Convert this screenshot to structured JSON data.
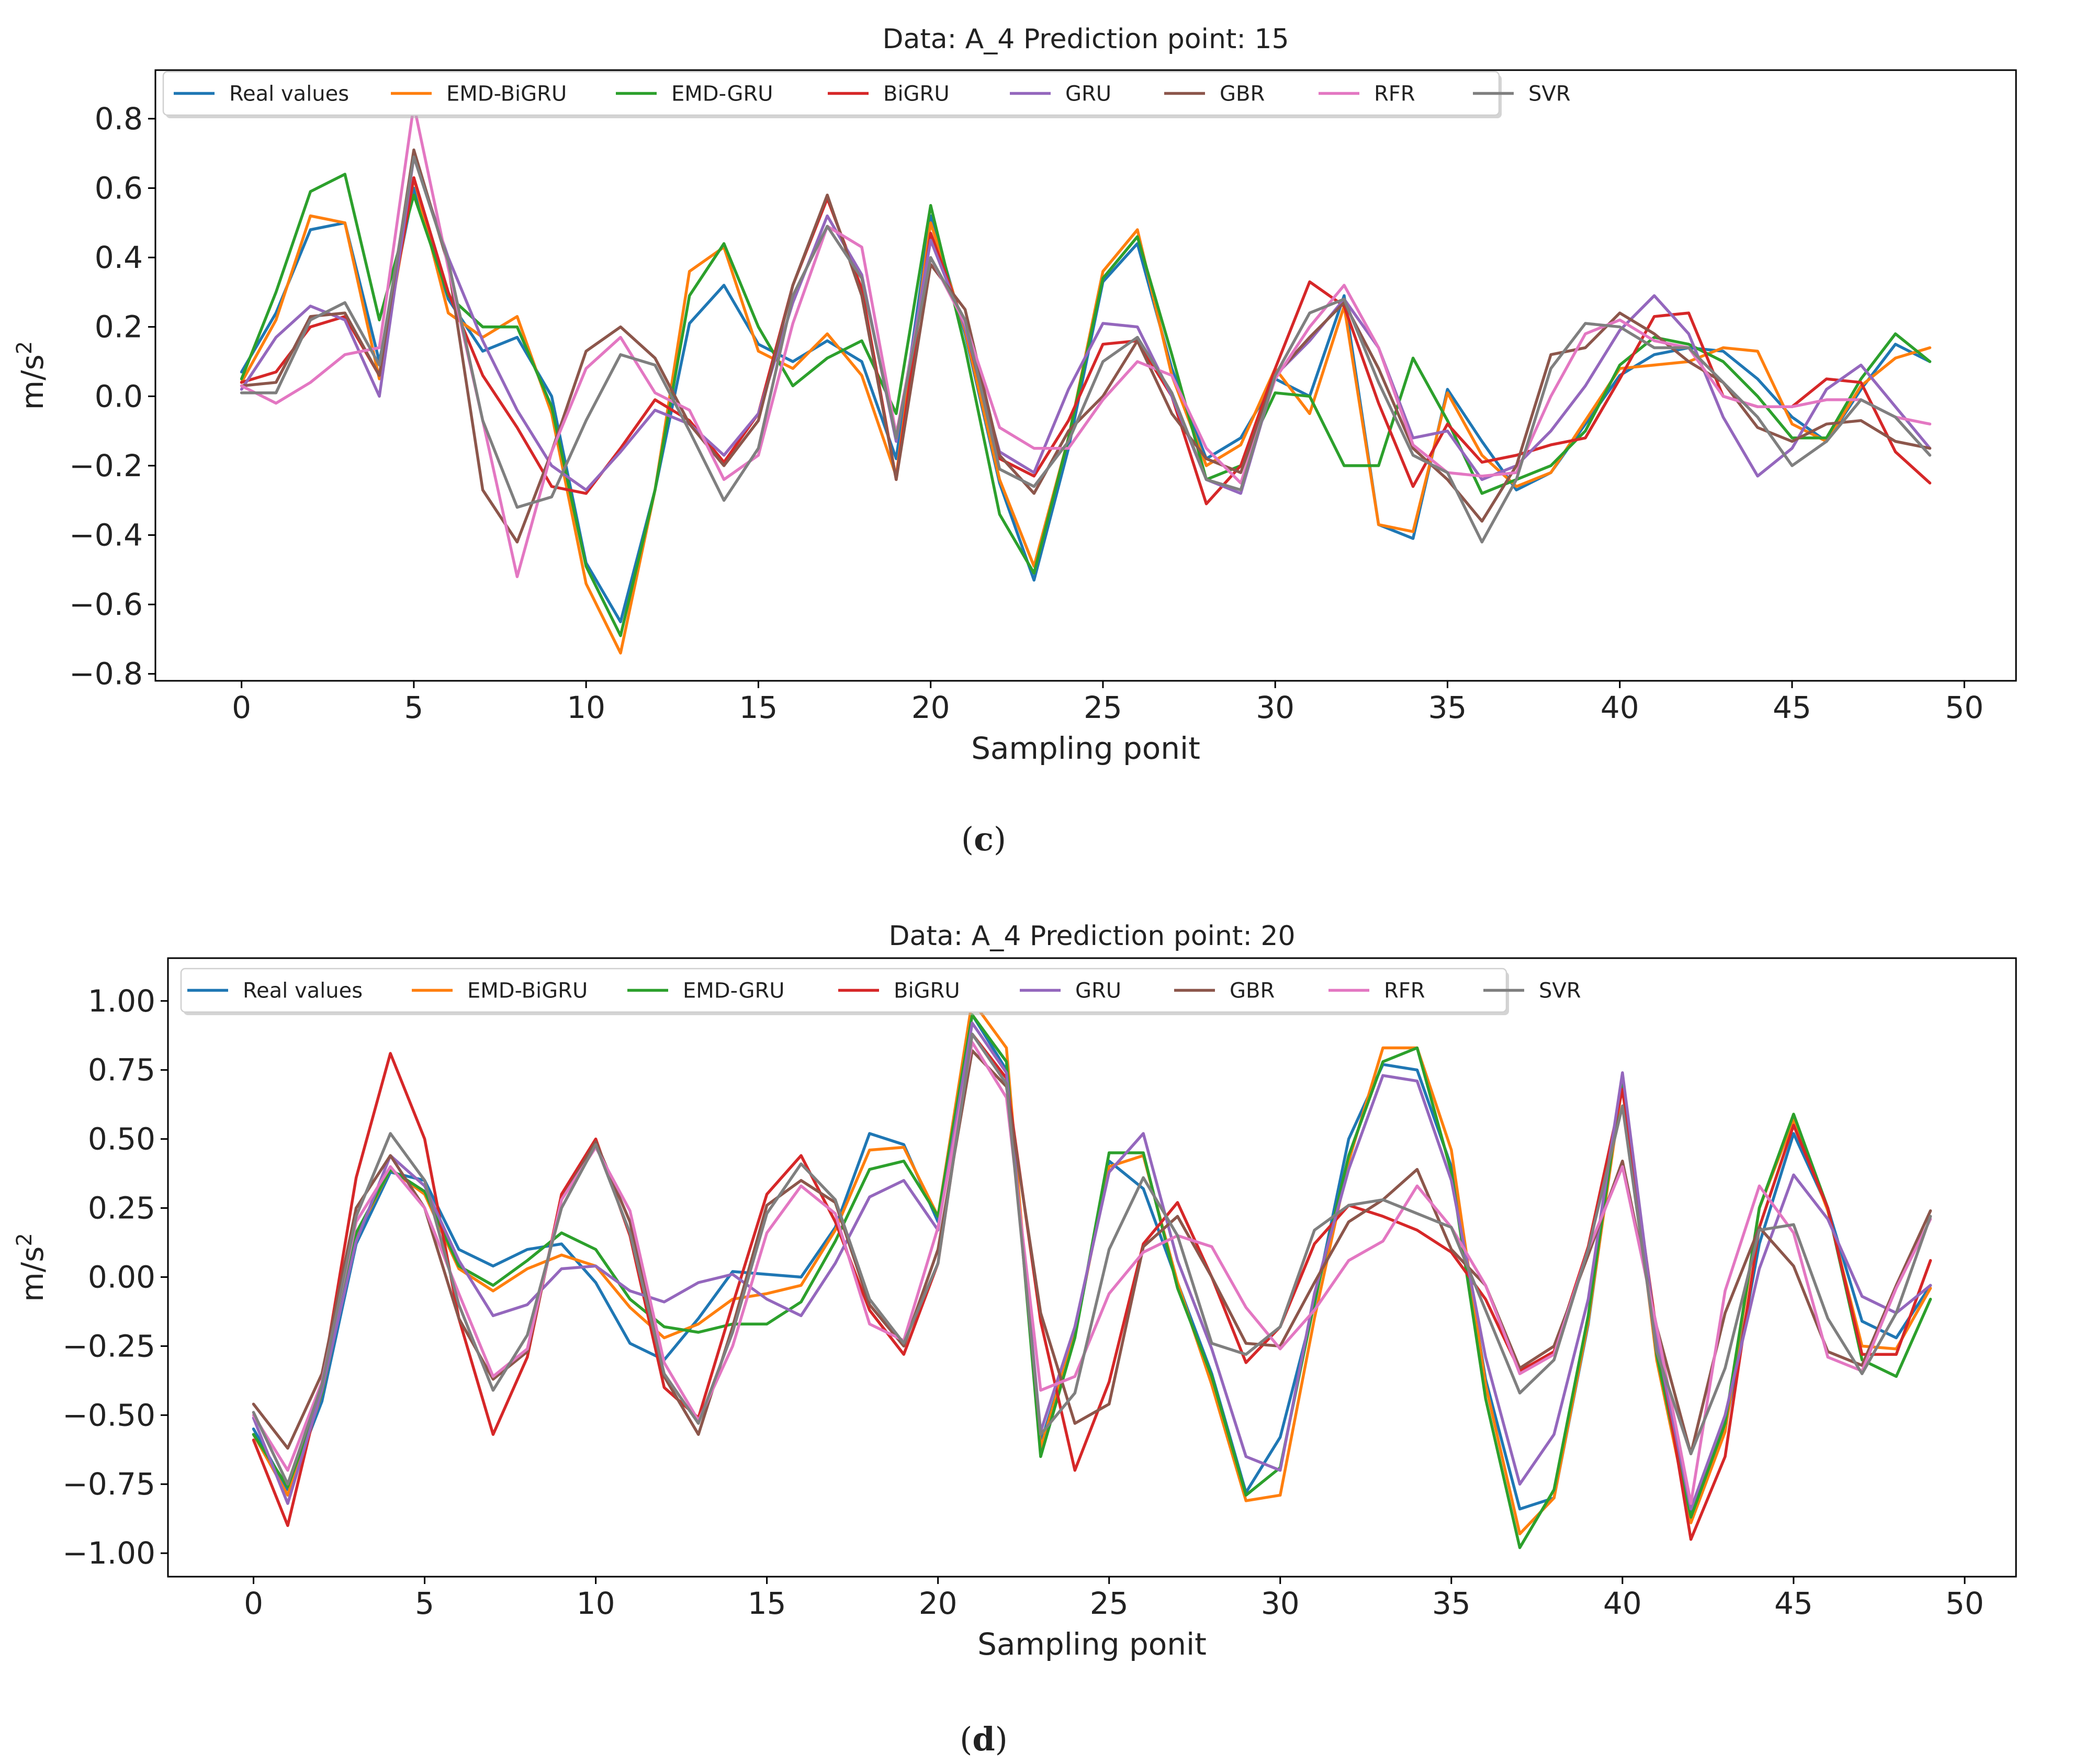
{
  "figure": {
    "background": "#ffffff",
    "colors": {
      "Real values": "#1f77b4",
      "EMD-BiGRU": "#ff7f0e",
      "EMD-GRU": "#2ca02c",
      "BiGRU": "#d62728",
      "GRU": "#9467bd",
      "GBR": "#8c564b",
      "RFR": "#e377c2",
      "SVR": "#7f7f7f"
    }
  },
  "chart_data": [
    {
      "type": "line",
      "panel_label": "(c)",
      "panel_letter": "c",
      "title": "Data: A_4 Prediction point: 15",
      "xlabel": "Sampling ponit",
      "ylabel": "m/s",
      "ylabel_sup": "2",
      "xlim": [
        -2.5,
        51.5
      ],
      "ylim": [
        -0.82,
        0.94
      ],
      "xticks": [
        0,
        5,
        10,
        15,
        20,
        25,
        30,
        35,
        40,
        45,
        50
      ],
      "xtick_labels": [
        "0",
        "5",
        "10",
        "15",
        "20",
        "25",
        "30",
        "35",
        "40",
        "45",
        "50"
      ],
      "yticks": [
        -0.8,
        -0.6,
        -0.4,
        -0.2,
        0.0,
        0.2,
        0.4,
        0.6,
        0.8
      ],
      "ytick_labels": [
        "−0.8",
        "−0.6",
        "−0.4",
        "−0.2",
        "0.0",
        "0.2",
        "0.4",
        "0.6",
        "0.8"
      ],
      "legend_position": "top-left",
      "x": [
        0,
        1,
        2,
        3,
        4,
        5,
        6,
        7,
        8,
        9,
        10,
        11,
        12,
        13,
        14,
        15,
        16,
        17,
        18,
        19,
        20,
        21,
        22,
        23,
        24,
        25,
        26,
        27,
        28,
        29,
        30,
        31,
        32,
        33,
        34,
        35,
        36,
        37,
        38,
        39,
        40,
        41,
        42,
        43,
        44,
        45,
        46,
        47,
        48,
        49
      ],
      "series": [
        {
          "name": "Real values",
          "values": [
            0.07,
            0.24,
            0.48,
            0.5,
            0.1,
            0.6,
            0.28,
            0.13,
            0.17,
            0.0,
            -0.48,
            -0.65,
            -0.27,
            0.21,
            0.32,
            0.15,
            0.1,
            0.16,
            0.1,
            -0.18,
            0.52,
            0.18,
            -0.25,
            -0.53,
            -0.15,
            0.33,
            0.44,
            0.08,
            -0.18,
            -0.12,
            0.05,
            0.0,
            0.29,
            -0.37,
            -0.41,
            0.02,
            -0.13,
            -0.27,
            -0.22,
            -0.08,
            0.06,
            0.12,
            0.14,
            0.13,
            0.05,
            -0.06,
            -0.13,
            0.02,
            0.15,
            0.1
          ]
        },
        {
          "name": "EMD-BiGRU",
          "values": [
            0.04,
            0.22,
            0.52,
            0.5,
            0.05,
            0.63,
            0.24,
            0.17,
            0.23,
            -0.05,
            -0.54,
            -0.74,
            -0.27,
            0.36,
            0.43,
            0.13,
            0.08,
            0.18,
            0.06,
            -0.23,
            0.5,
            0.19,
            -0.24,
            -0.49,
            -0.12,
            0.36,
            0.48,
            0.06,
            -0.2,
            -0.14,
            0.08,
            -0.05,
            0.26,
            -0.37,
            -0.39,
            0.01,
            -0.17,
            -0.26,
            -0.22,
            -0.07,
            0.08,
            0.09,
            0.1,
            0.14,
            0.13,
            -0.08,
            -0.13,
            0.03,
            0.11,
            0.14
          ]
        },
        {
          "name": "EMD-GRU",
          "values": [
            0.05,
            0.3,
            0.59,
            0.64,
            0.22,
            0.58,
            0.29,
            0.2,
            0.2,
            -0.03,
            -0.49,
            -0.69,
            -0.27,
            0.29,
            0.44,
            0.2,
            0.03,
            0.11,
            0.16,
            -0.05,
            0.55,
            0.14,
            -0.34,
            -0.51,
            -0.12,
            0.34,
            0.46,
            0.12,
            -0.24,
            -0.2,
            0.01,
            0.0,
            -0.2,
            -0.2,
            0.11,
            -0.07,
            -0.28,
            -0.24,
            -0.2,
            -0.1,
            0.09,
            0.17,
            0.15,
            0.1,
            0.0,
            -0.12,
            -0.12,
            0.05,
            0.18,
            0.1
          ]
        },
        {
          "name": "BiGRU",
          "values": [
            0.04,
            0.07,
            0.2,
            0.23,
            0.06,
            0.63,
            0.3,
            0.06,
            -0.09,
            -0.26,
            -0.28,
            -0.15,
            -0.01,
            -0.07,
            -0.19,
            -0.05,
            0.32,
            0.57,
            0.31,
            -0.24,
            0.47,
            0.2,
            -0.18,
            -0.23,
            -0.07,
            0.15,
            0.16,
            0.0,
            -0.31,
            -0.2,
            0.08,
            0.33,
            0.26,
            -0.02,
            -0.26,
            -0.08,
            -0.19,
            -0.17,
            -0.14,
            -0.12,
            0.05,
            0.23,
            0.24,
            0.0,
            -0.03,
            -0.03,
            0.05,
            0.04,
            -0.16,
            -0.25
          ]
        },
        {
          "name": "GRU",
          "values": [
            0.02,
            0.17,
            0.26,
            0.22,
            0.0,
            0.69,
            0.4,
            0.16,
            -0.04,
            -0.2,
            -0.27,
            -0.16,
            -0.04,
            -0.08,
            -0.17,
            -0.05,
            0.27,
            0.52,
            0.35,
            -0.13,
            0.45,
            0.2,
            -0.16,
            -0.22,
            0.02,
            0.21,
            0.2,
            0.0,
            -0.24,
            -0.28,
            0.06,
            0.16,
            0.28,
            0.14,
            -0.12,
            -0.1,
            -0.24,
            -0.2,
            -0.1,
            0.03,
            0.19,
            0.29,
            0.18,
            -0.06,
            -0.23,
            -0.15,
            0.02,
            0.09,
            -0.03,
            -0.15
          ]
        },
        {
          "name": "GBR",
          "values": [
            0.03,
            0.04,
            0.23,
            0.24,
            0.06,
            0.71,
            0.38,
            -0.27,
            -0.42,
            -0.16,
            0.13,
            0.2,
            0.11,
            -0.08,
            -0.2,
            -0.07,
            0.32,
            0.58,
            0.29,
            -0.24,
            0.38,
            0.25,
            -0.17,
            -0.28,
            -0.1,
            0.0,
            0.16,
            -0.05,
            -0.18,
            -0.22,
            0.06,
            0.17,
            0.27,
            0.08,
            -0.15,
            -0.24,
            -0.36,
            -0.2,
            0.12,
            0.14,
            0.24,
            0.18,
            0.1,
            0.04,
            -0.09,
            -0.13,
            -0.08,
            -0.07,
            -0.13,
            -0.15
          ]
        },
        {
          "name": "RFR",
          "values": [
            0.03,
            -0.02,
            0.04,
            0.12,
            0.14,
            0.84,
            0.37,
            -0.07,
            -0.52,
            -0.16,
            0.08,
            0.17,
            0.01,
            -0.04,
            -0.24,
            -0.17,
            0.21,
            0.49,
            0.43,
            -0.11,
            0.4,
            0.21,
            -0.09,
            -0.15,
            -0.15,
            -0.01,
            0.1,
            0.06,
            -0.15,
            -0.25,
            0.05,
            0.2,
            0.32,
            0.14,
            -0.14,
            -0.22,
            -0.23,
            -0.22,
            0.0,
            0.18,
            0.22,
            0.16,
            0.14,
            0.0,
            -0.03,
            -0.03,
            -0.01,
            -0.01,
            -0.06,
            -0.08
          ]
        },
        {
          "name": "SVR",
          "values": [
            0.01,
            0.01,
            0.22,
            0.27,
            0.09,
            0.69,
            0.39,
            -0.07,
            -0.32,
            -0.29,
            -0.07,
            0.12,
            0.09,
            -0.1,
            -0.3,
            -0.15,
            0.29,
            0.49,
            0.34,
            -0.12,
            0.4,
            0.22,
            -0.21,
            -0.26,
            -0.13,
            0.1,
            0.17,
            0.01,
            -0.24,
            -0.27,
            0.06,
            0.24,
            0.28,
            0.04,
            -0.17,
            -0.22,
            -0.42,
            -0.24,
            0.08,
            0.21,
            0.2,
            0.14,
            0.14,
            0.04,
            -0.06,
            -0.2,
            -0.13,
            -0.01,
            -0.06,
            -0.17
          ]
        }
      ]
    },
    {
      "type": "line",
      "panel_label": "(d)",
      "panel_letter": "d",
      "title": "Data: A_4 Prediction point: 20",
      "xlabel": "Sampling ponit",
      "ylabel": "m/s",
      "ylabel_sup": "2",
      "xlim": [
        -2.5,
        51.5
      ],
      "ylim": [
        -1.085,
        1.155
      ],
      "xticks": [
        0,
        5,
        10,
        15,
        20,
        25,
        30,
        35,
        40,
        45,
        50
      ],
      "xtick_labels": [
        "0",
        "5",
        "10",
        "15",
        "20",
        "25",
        "30",
        "35",
        "40",
        "45",
        "50"
      ],
      "yticks": [
        -1.0,
        -0.75,
        -0.5,
        -0.25,
        0.0,
        0.25,
        0.5,
        0.75,
        1.0
      ],
      "ytick_labels": [
        "−1.00",
        "−0.75",
        "−0.50",
        "−0.25",
        "0.00",
        "0.25",
        "0.50",
        "0.75",
        "1.00"
      ],
      "legend_position": "top-left",
      "x": [
        0,
        1,
        2,
        3,
        4,
        5,
        6,
        7,
        8,
        9,
        10,
        11,
        12,
        13,
        14,
        15,
        16,
        17,
        18,
        19,
        20,
        21,
        22,
        23,
        24,
        25,
        26,
        27,
        28,
        29,
        30,
        31,
        32,
        33,
        34,
        35,
        36,
        37,
        38,
        39,
        40,
        41,
        42,
        43,
        44,
        45,
        46,
        47,
        48,
        49
      ],
      "series": [
        {
          "name": "Real values",
          "values": [
            -0.55,
            -0.77,
            -0.45,
            0.12,
            0.38,
            0.35,
            0.1,
            0.04,
            0.1,
            0.12,
            -0.02,
            -0.24,
            -0.3,
            -0.15,
            0.02,
            0.01,
            0.0,
            0.18,
            0.52,
            0.48,
            0.2,
            0.95,
            0.75,
            -0.6,
            -0.21,
            0.42,
            0.32,
            -0.02,
            -0.35,
            -0.78,
            -0.58,
            -0.1,
            0.5,
            0.77,
            0.75,
            0.4,
            -0.37,
            -0.84,
            -0.8,
            -0.17,
            0.72,
            -0.25,
            -0.85,
            -0.55,
            0.12,
            0.52,
            0.25,
            -0.16,
            -0.22,
            -0.03
          ]
        },
        {
          "name": "EMD-BiGRU",
          "values": [
            -0.57,
            -0.79,
            -0.42,
            0.15,
            0.39,
            0.3,
            0.03,
            -0.05,
            0.03,
            0.08,
            0.04,
            -0.11,
            -0.22,
            -0.17,
            -0.08,
            -0.06,
            -0.03,
            0.17,
            0.46,
            0.47,
            0.22,
            1.0,
            0.83,
            -0.62,
            -0.2,
            0.4,
            0.44,
            -0.02,
            -0.39,
            -0.81,
            -0.79,
            -0.15,
            0.42,
            0.83,
            0.83,
            0.46,
            -0.39,
            -0.93,
            -0.8,
            -0.16,
            0.7,
            -0.3,
            -0.89,
            -0.56,
            0.25,
            0.57,
            0.24,
            -0.25,
            -0.26,
            -0.04
          ]
        },
        {
          "name": "EMD-GRU",
          "values": [
            -0.57,
            -0.76,
            -0.42,
            0.16,
            0.39,
            0.31,
            0.04,
            -0.03,
            0.06,
            0.16,
            0.1,
            -0.08,
            -0.18,
            -0.2,
            -0.17,
            -0.17,
            -0.09,
            0.13,
            0.39,
            0.42,
            0.22,
            0.95,
            0.78,
            -0.65,
            -0.22,
            0.45,
            0.45,
            -0.04,
            -0.36,
            -0.79,
            -0.69,
            -0.09,
            0.44,
            0.78,
            0.83,
            0.38,
            -0.44,
            -0.98,
            -0.77,
            -0.14,
            0.72,
            -0.28,
            -0.87,
            -0.53,
            0.25,
            0.59,
            0.25,
            -0.3,
            -0.36,
            -0.08
          ]
        },
        {
          "name": "BiGRU",
          "values": [
            -0.59,
            -0.9,
            -0.38,
            0.36,
            0.81,
            0.5,
            -0.15,
            -0.57,
            -0.29,
            0.3,
            0.5,
            0.15,
            -0.4,
            -0.51,
            -0.1,
            0.3,
            0.44,
            0.2,
            -0.12,
            -0.28,
            0.05,
            0.88,
            0.72,
            -0.16,
            -0.7,
            -0.38,
            0.12,
            0.27,
            0.0,
            -0.31,
            -0.18,
            0.12,
            0.26,
            0.22,
            0.17,
            0.09,
            -0.08,
            -0.34,
            -0.27,
            0.11,
            0.68,
            -0.2,
            -0.95,
            -0.65,
            0.18,
            0.55,
            0.25,
            -0.28,
            -0.28,
            0.06
          ]
        },
        {
          "name": "GRU",
          "values": [
            -0.51,
            -0.82,
            -0.41,
            0.13,
            0.44,
            0.33,
            0.06,
            -0.14,
            -0.1,
            0.03,
            0.04,
            -0.05,
            -0.09,
            -0.02,
            0.01,
            -0.08,
            -0.14,
            0.05,
            0.29,
            0.35,
            0.17,
            0.92,
            0.74,
            -0.56,
            -0.18,
            0.38,
            0.52,
            0.06,
            -0.26,
            -0.65,
            -0.7,
            -0.06,
            0.39,
            0.73,
            0.71,
            0.35,
            -0.29,
            -0.75,
            -0.57,
            -0.08,
            0.74,
            -0.23,
            -0.84,
            -0.5,
            0.03,
            0.37,
            0.21,
            -0.07,
            -0.13,
            -0.03
          ]
        },
        {
          "name": "GBR",
          "values": [
            -0.46,
            -0.62,
            -0.35,
            0.25,
            0.44,
            0.25,
            -0.15,
            -0.37,
            -0.27,
            0.28,
            0.49,
            0.2,
            -0.36,
            -0.57,
            -0.18,
            0.26,
            0.35,
            0.27,
            -0.1,
            -0.25,
            0.1,
            0.82,
            0.69,
            -0.13,
            -0.53,
            -0.46,
            0.11,
            0.22,
            0.0,
            -0.24,
            -0.25,
            -0.02,
            0.2,
            0.28,
            0.39,
            0.1,
            -0.03,
            -0.33,
            -0.25,
            0.08,
            0.42,
            -0.18,
            -0.64,
            -0.13,
            0.18,
            0.04,
            -0.27,
            -0.32,
            -0.03,
            0.24
          ]
        },
        {
          "name": "RFR",
          "values": [
            -0.5,
            -0.7,
            -0.38,
            0.2,
            0.4,
            0.25,
            -0.06,
            -0.36,
            -0.26,
            0.28,
            0.47,
            0.24,
            -0.31,
            -0.52,
            -0.25,
            0.16,
            0.33,
            0.23,
            -0.17,
            -0.23,
            0.18,
            0.85,
            0.65,
            -0.41,
            -0.36,
            -0.06,
            0.09,
            0.15,
            0.11,
            -0.11,
            -0.26,
            -0.12,
            0.06,
            0.13,
            0.33,
            0.18,
            -0.03,
            -0.35,
            -0.28,
            0.1,
            0.4,
            -0.18,
            -0.82,
            -0.05,
            0.33,
            0.16,
            -0.29,
            -0.34,
            -0.04,
            0.21
          ]
        },
        {
          "name": "SVR",
          "values": [
            -0.49,
            -0.75,
            -0.39,
            0.22,
            0.52,
            0.35,
            -0.1,
            -0.41,
            -0.21,
            0.25,
            0.48,
            0.16,
            -0.35,
            -0.53,
            -0.2,
            0.23,
            0.41,
            0.28,
            -0.08,
            -0.24,
            0.05,
            0.88,
            0.7,
            -0.57,
            -0.42,
            0.1,
            0.36,
            0.15,
            -0.24,
            -0.28,
            -0.18,
            0.17,
            0.26,
            0.28,
            0.23,
            0.18,
            -0.12,
            -0.42,
            -0.3,
            0.1,
            0.62,
            -0.27,
            -0.64,
            -0.33,
            0.17,
            0.19,
            -0.15,
            -0.35,
            -0.13,
            0.22
          ]
        }
      ]
    }
  ]
}
